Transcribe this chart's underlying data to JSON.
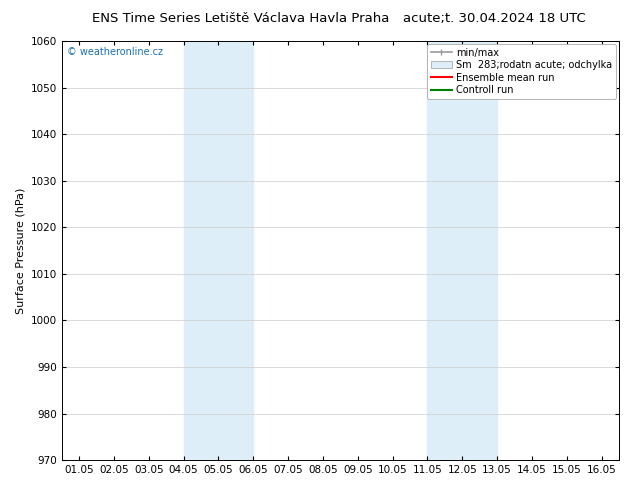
{
  "title_left": "ENS Time Series Letiště Václava Havla Praha",
  "title_right": "acute;t. 30.04.2024 18 UTC",
  "ylabel": "Surface Pressure (hPa)",
  "ylim": [
    970,
    1060
  ],
  "yticks": [
    970,
    980,
    990,
    1000,
    1010,
    1020,
    1030,
    1040,
    1050,
    1060
  ],
  "xtick_labels": [
    "01.05",
    "02.05",
    "03.05",
    "04.05",
    "05.05",
    "06.05",
    "07.05",
    "08.05",
    "09.05",
    "10.05",
    "11.05",
    "12.05",
    "13.05",
    "14.05",
    "15.05",
    "16.05"
  ],
  "n_xticks": 16,
  "shaded_bands": [
    {
      "xstart": 3,
      "xend": 5
    },
    {
      "xstart": 10,
      "xend": 12
    }
  ],
  "shade_color": "#ddeef8",
  "watermark": "© weatheronline.cz",
  "legend_entries": [
    "min/max",
    "Sm  283;rodatn acute; odchylka",
    "Ensemble mean run",
    "Controll run"
  ],
  "minmax_color": "#999999",
  "std_color": "#ccddee",
  "mean_color": "#ff0000",
  "control_color": "#008000",
  "background_color": "#ffffff",
  "title_fontsize": 9.5,
  "label_fontsize": 8,
  "tick_fontsize": 7.5,
  "watermark_color": "#1a6faf"
}
